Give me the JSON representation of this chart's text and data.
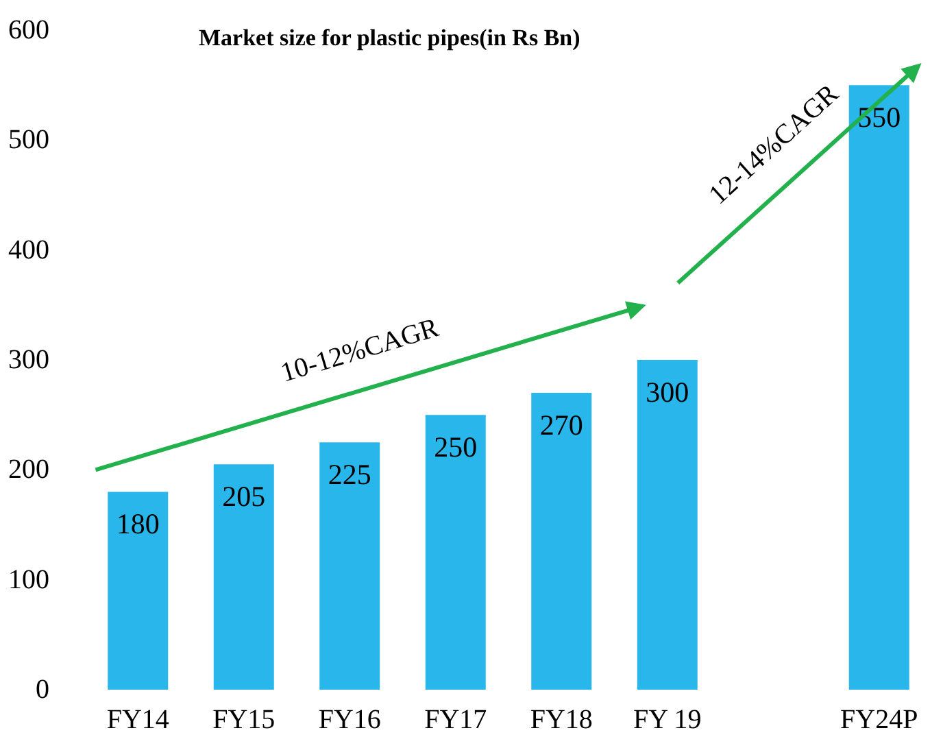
{
  "chart_data": {
    "type": "bar",
    "title": "Market size for plastic pipes(in Rs Bn)",
    "categories": [
      "FY14",
      "FY15",
      "FY16",
      "FY17",
      "FY18",
      "FY 19",
      null,
      "FY24P"
    ],
    "values": [
      180,
      205,
      225,
      250,
      270,
      300,
      null,
      550
    ],
    "color": "#29b6ea",
    "ylim": [
      0,
      600
    ],
    "yticks": [
      0,
      100,
      200,
      300,
      400,
      500,
      600
    ],
    "grid": false,
    "data_labels": true,
    "annotations": [
      "10-12%CAGR",
      "12-14%CAGR"
    ]
  }
}
